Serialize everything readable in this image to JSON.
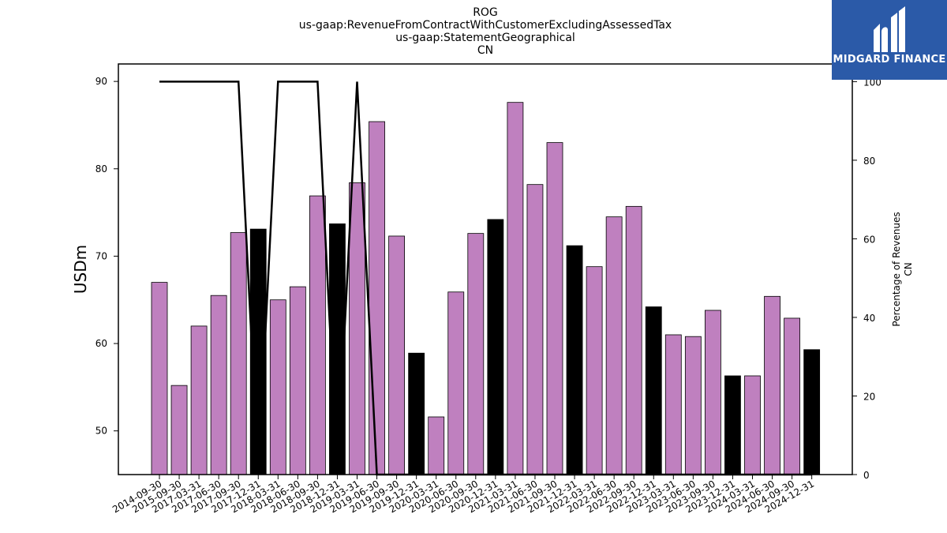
{
  "chart_data": {
    "type": "bar",
    "title_lines": [
      "ROG",
      "us-gaap:RevenueFromContractWithCustomerExcludingAssessedTax",
      "us-gaap:StatementGeographical",
      "CN"
    ],
    "ylabel": "USDm",
    "y2label_lines": [
      "Percentage of Revenues",
      "CN"
    ],
    "ylim": [
      45,
      92
    ],
    "y2lim": [
      0,
      104.5
    ],
    "yticks": [
      50,
      60,
      70,
      80,
      90
    ],
    "y2ticks": [
      0,
      20,
      40,
      60,
      80,
      100
    ],
    "categories": [
      "2014-09-30",
      "2015-09-30",
      "2017-03-31",
      "2017-06-30",
      "2017-09-30",
      "2017-12-31",
      "2018-03-31",
      "2018-06-30",
      "2018-09-30",
      "2018-12-31",
      "2019-03-31",
      "2019-06-30",
      "2019-09-30",
      "2019-12-31",
      "2020-03-31",
      "2020-06-30",
      "2020-09-30",
      "2020-12-31",
      "2021-03-31",
      "2021-06-30",
      "2021-09-30",
      "2021-12-31",
      "2022-03-31",
      "2022-06-30",
      "2022-09-30",
      "2022-12-31",
      "2023-03-31",
      "2023-06-30",
      "2023-09-30",
      "2023-12-31",
      "2024-03-31",
      "2024-06-30",
      "2024-09-30",
      "2024-12-31"
    ],
    "values": [
      67.0,
      55.2,
      62.0,
      65.5,
      72.7,
      73.1,
      65.0,
      66.5,
      76.9,
      73.7,
      78.4,
      85.4,
      72.3,
      58.9,
      51.6,
      65.9,
      72.6,
      74.2,
      87.6,
      78.2,
      83.0,
      71.2,
      68.8,
      74.5,
      75.7,
      64.2,
      61.0,
      60.8,
      63.8,
      56.3,
      56.3,
      65.4,
      62.9,
      59.3
    ],
    "highlight": [
      false,
      false,
      false,
      false,
      false,
      true,
      false,
      false,
      false,
      true,
      false,
      false,
      false,
      true,
      false,
      false,
      false,
      true,
      false,
      false,
      false,
      true,
      false,
      false,
      false,
      true,
      false,
      false,
      false,
      true,
      false,
      false,
      false,
      true
    ],
    "bar_color": "#bf80bf",
    "highlight_color": "#000000",
    "line_series": {
      "name": "Percentage of Revenues",
      "values": [
        100,
        100,
        100,
        100,
        100,
        0,
        100,
        100,
        100,
        0,
        100,
        0,
        0,
        0,
        0,
        0,
        0,
        0,
        0,
        0,
        0,
        0,
        0,
        0,
        0,
        0,
        0,
        0,
        0,
        0,
        0,
        0,
        0,
        0
      ],
      "color": "#000000"
    }
  },
  "logo": {
    "text": "MIDGARD FINANCE",
    "color": "#2b5aa8"
  }
}
